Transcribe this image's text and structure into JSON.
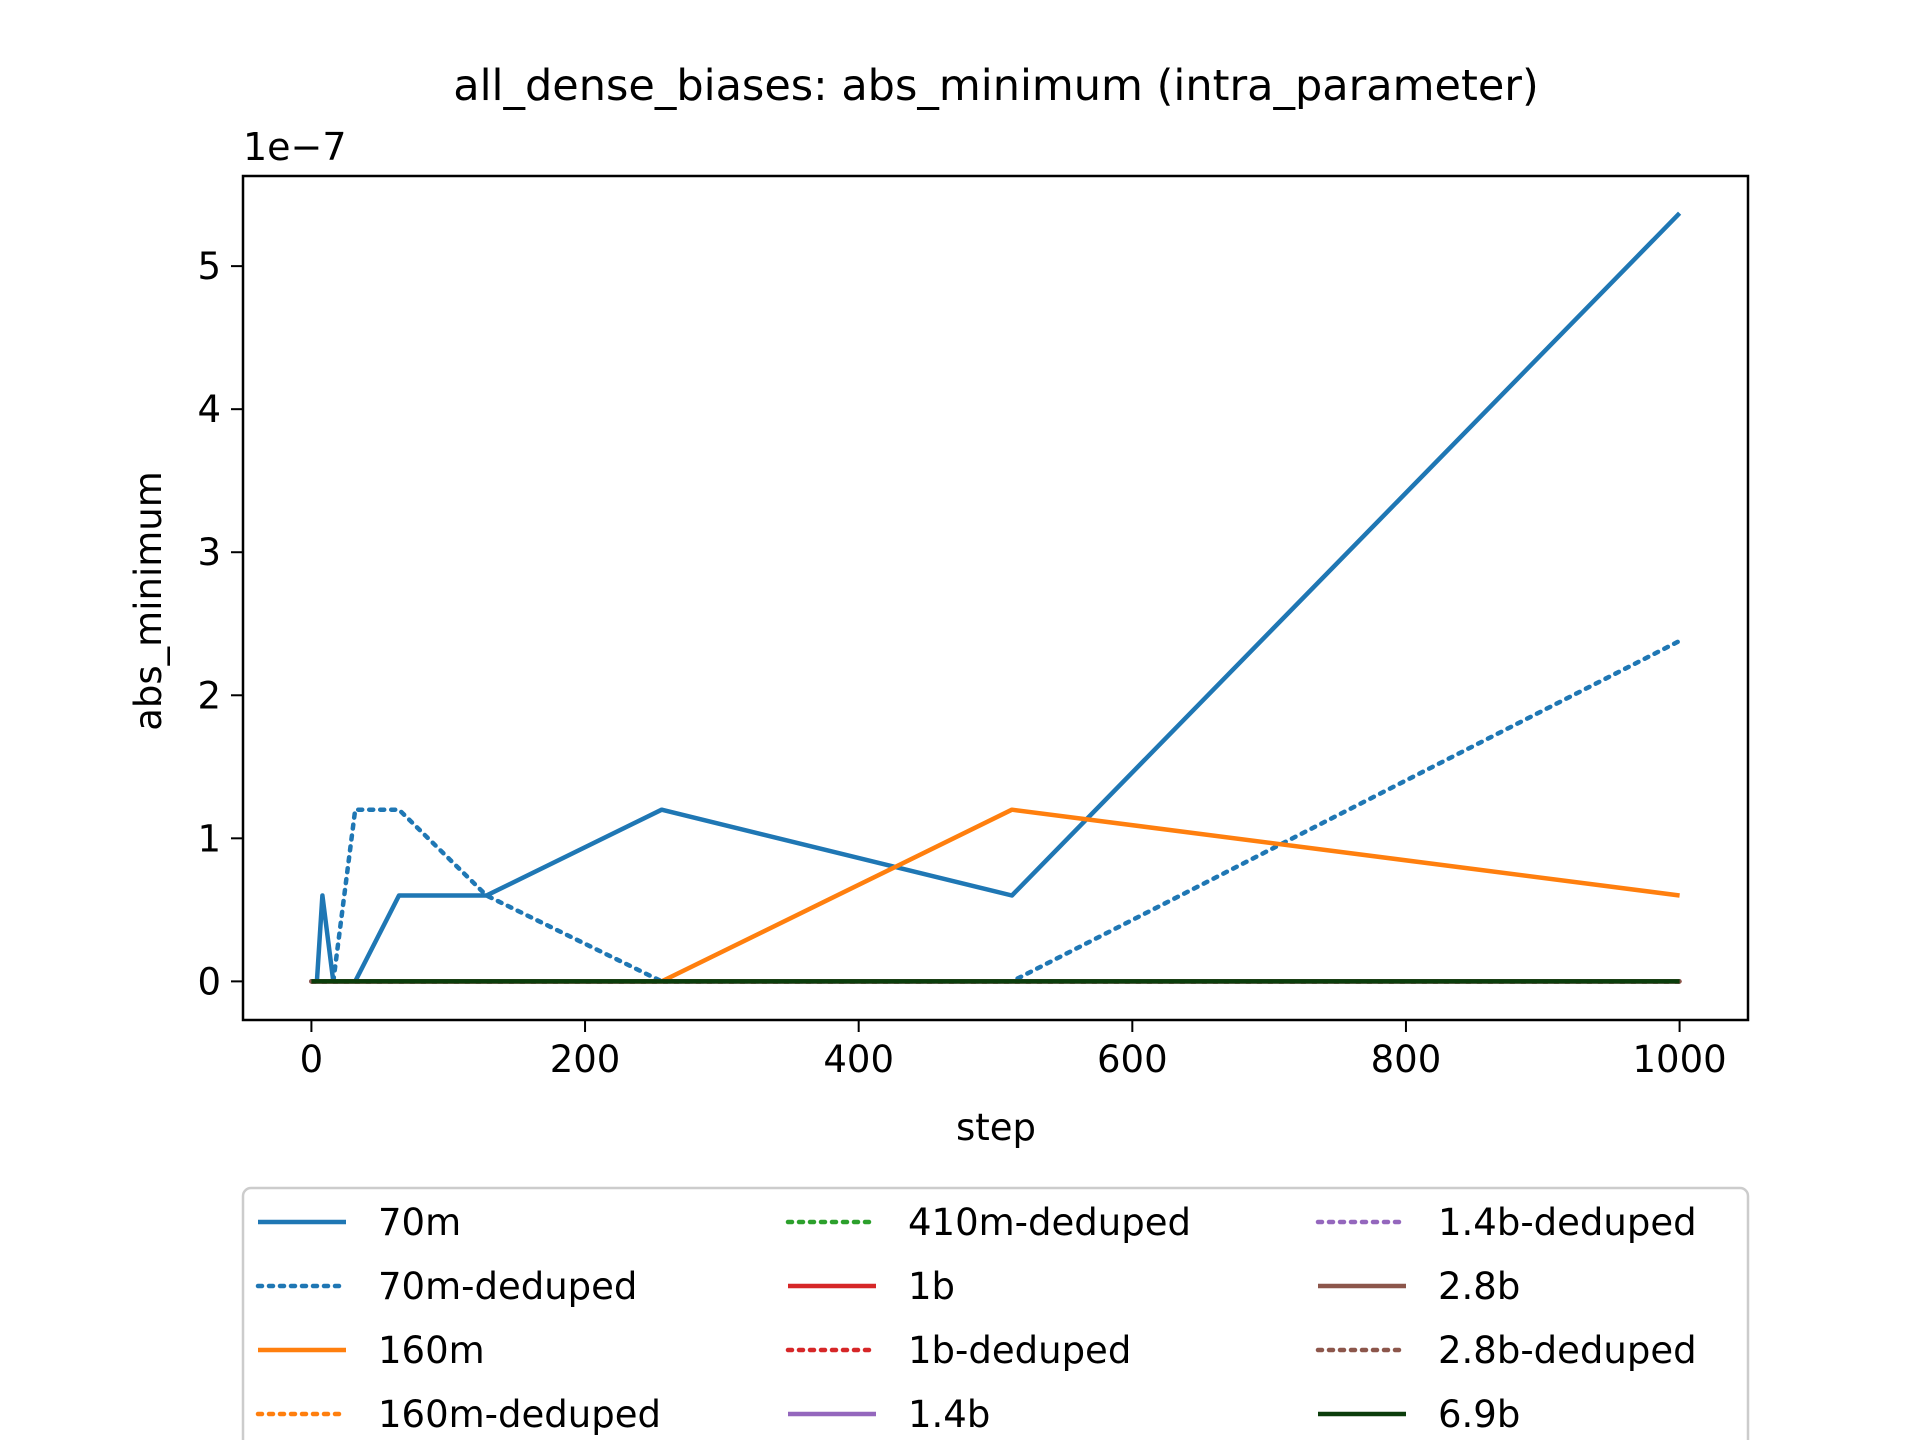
{
  "chart_data": {
    "type": "line",
    "title": "all_dense_biases: abs_minimum (intra_parameter)",
    "xlabel": "step",
    "ylabel": "abs_minimum",
    "y_offset_text": "1e−7",
    "y_scale_factor": 1e-07,
    "xlim": [
      -50,
      1050
    ],
    "ylim": [
      -0.27,
      5.63
    ],
    "x_ticks": [
      0,
      200,
      400,
      600,
      800,
      1000
    ],
    "x_tick_labels": [
      "0",
      "200",
      "400",
      "600",
      "800",
      "1000"
    ],
    "y_ticks": [
      0,
      1,
      2,
      3,
      4,
      5
    ],
    "y_tick_labels": [
      "0",
      "1",
      "2",
      "3",
      "4",
      "5"
    ],
    "grid": false,
    "legend_position": "bottom",
    "series": [
      {
        "name": "70m",
        "color": "#1f77b4",
        "style": "solid",
        "x": [
          0,
          1,
          2,
          4,
          8,
          16,
          32,
          64,
          128,
          256,
          512,
          1000
        ],
        "y": [
          0,
          0,
          0,
          0,
          0.6,
          0,
          0,
          0.6,
          0.6,
          1.2,
          0.6,
          5.37
        ]
      },
      {
        "name": "70m-deduped",
        "color": "#1f77b4",
        "style": "dotted",
        "x": [
          0,
          1,
          2,
          4,
          8,
          16,
          32,
          64,
          128,
          256,
          512,
          1000
        ],
        "y": [
          0,
          0,
          0,
          0,
          0,
          0,
          1.2,
          1.2,
          0.6,
          0,
          0,
          2.38
        ]
      },
      {
        "name": "160m",
        "color": "#ff7f0e",
        "style": "solid",
        "x": [
          0,
          1,
          2,
          4,
          8,
          16,
          32,
          64,
          128,
          256,
          512,
          1000
        ],
        "y": [
          0,
          0,
          0,
          0,
          0,
          0,
          0,
          0,
          0,
          0,
          1.2,
          0.6
        ]
      },
      {
        "name": "160m-deduped",
        "color": "#ff7f0e",
        "style": "dotted",
        "x": [
          0,
          1000
        ],
        "y": [
          0,
          0
        ]
      },
      {
        "name": "410m-deduped",
        "color": "#2ca02c",
        "style": "dotted",
        "x": [
          0,
          1000
        ],
        "y": [
          0,
          0
        ]
      },
      {
        "name": "1b",
        "color": "#d62728",
        "style": "solid",
        "x": [
          0,
          1000
        ],
        "y": [
          0,
          0
        ]
      },
      {
        "name": "1b-deduped",
        "color": "#d62728",
        "style": "dotted",
        "x": [
          0,
          1000
        ],
        "y": [
          0,
          0
        ]
      },
      {
        "name": "1.4b",
        "color": "#9467bd",
        "style": "solid",
        "x": [
          0,
          1000
        ],
        "y": [
          0,
          0
        ]
      },
      {
        "name": "1.4b-deduped",
        "color": "#9467bd",
        "style": "dotted",
        "x": [
          0,
          1000
        ],
        "y": [
          0,
          0
        ]
      },
      {
        "name": "2.8b",
        "color": "#8c564b",
        "style": "solid",
        "x": [
          0,
          1000
        ],
        "y": [
          0,
          0
        ]
      },
      {
        "name": "2.8b-deduped",
        "color": "#8c564b",
        "style": "dotted",
        "x": [
          0,
          1000
        ],
        "y": [
          0,
          0
        ]
      },
      {
        "name": "6.9b",
        "color": "#0b3d0b",
        "style": "solid",
        "x": [
          0,
          1000
        ],
        "y": [
          0,
          0
        ]
      }
    ]
  }
}
